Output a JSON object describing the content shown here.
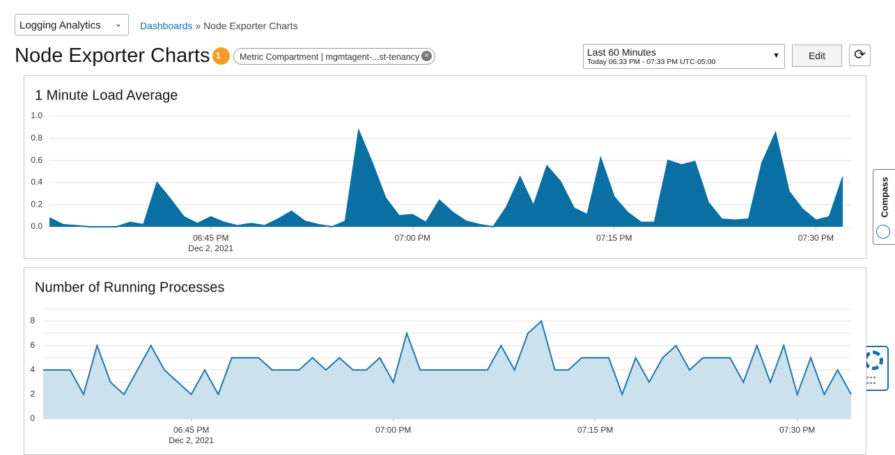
{
  "header": {
    "app_select": "Logging Analytics",
    "breadcrumb_link": "Dashboards",
    "breadcrumb_current": "» Node Exporter Charts",
    "title": "Node Exporter Charts",
    "filter_count": "1",
    "chip": "Metric Compartment | mgmtagent-...st-tenancy",
    "time_range": "Last 60 Minutes",
    "time_detail": "Today 06:33 PM - 07:33 PM UTC-05:00",
    "edit": "Edit",
    "side_tab": "Compass"
  },
  "chart_data": [
    {
      "type": "area",
      "title": "1 Minute Load Average",
      "color": "#0a6fa3",
      "fill": "#0a6fa3",
      "grid": true,
      "x": [
        1113,
        1114,
        1115,
        1116,
        1117,
        1118,
        1119,
        1120,
        1121,
        1122,
        1123,
        1124,
        1125,
        1126,
        1127,
        1128,
        1129,
        1130,
        1131,
        1132,
        1133,
        1134,
        1135,
        1136,
        1137,
        1138,
        1139,
        1140,
        1141,
        1142,
        1143,
        1144,
        1145,
        1146,
        1147,
        1148,
        1149,
        1150,
        1151,
        1152,
        1153,
        1154,
        1155,
        1156,
        1157,
        1158,
        1159,
        1160,
        1161,
        1162,
        1163,
        1164,
        1165,
        1166,
        1167,
        1168,
        1169,
        1170,
        1171,
        1172
      ],
      "values": [
        0.08,
        0.02,
        0.01,
        0,
        0,
        0,
        0.04,
        0.02,
        0.4,
        0.25,
        0.09,
        0.03,
        0.09,
        0.04,
        0.01,
        0.03,
        0.01,
        0.07,
        0.14,
        0.05,
        0.02,
        0,
        0.05,
        0.87,
        0.58,
        0.26,
        0.1,
        0.11,
        0.04,
        0.24,
        0.13,
        0.05,
        0.02,
        0,
        0.18,
        0.45,
        0.19,
        0.55,
        0.41,
        0.17,
        0.11,
        0.62,
        0.27,
        0.13,
        0.04,
        0.04,
        0.6,
        0.56,
        0.59,
        0.22,
        0.07,
        0.06,
        0.07,
        0.58,
        0.85,
        0.32,
        0.16,
        0.06,
        0.09,
        0.45
      ],
      "xlim": [
        1113,
        1172
      ],
      "xticks": [
        {
          "value": 1125,
          "label": "06:45 PM"
        },
        {
          "value": 1140,
          "label": "07:00 PM"
        },
        {
          "value": 1155,
          "label": "07:15 PM"
        },
        {
          "value": 1170,
          "label": "07:30 PM"
        }
      ],
      "date_label": "Dec 2, 2021",
      "ylim": [
        0,
        1
      ],
      "yticks": [
        {
          "value": 0,
          "label": "0.0"
        },
        0.2,
        0.4,
        0.6,
        0.8,
        {
          "value": 1,
          "label": "1.0"
        }
      ]
    },
    {
      "type": "area",
      "title": "Number of Running Processes",
      "color": "#1f77aa",
      "fill": "#cbe1ed",
      "grid": true,
      "x": [
        1114,
        1115,
        1116,
        1117,
        1118,
        1119,
        1120,
        1121,
        1122,
        1123,
        1124,
        1125,
        1126,
        1127,
        1128,
        1129,
        1130,
        1131,
        1132,
        1133,
        1134,
        1135,
        1136,
        1137,
        1138,
        1139,
        1140,
        1141,
        1142,
        1143,
        1144,
        1145,
        1146,
        1147,
        1148,
        1149,
        1150,
        1151,
        1152,
        1153,
        1154,
        1155,
        1156,
        1157,
        1158,
        1159,
        1160,
        1161,
        1162,
        1163,
        1164,
        1165,
        1166,
        1167,
        1168,
        1169,
        1170,
        1171,
        1172,
        1173,
        1174
      ],
      "values": [
        4,
        4,
        4,
        2,
        6,
        3,
        2,
        4,
        6,
        4,
        3,
        2,
        4,
        2,
        5,
        5,
        5,
        4,
        4,
        4,
        5,
        4,
        5,
        4,
        4,
        5,
        3,
        7,
        4,
        4,
        4,
        4,
        4,
        4,
        6,
        4,
        7,
        8,
        4,
        4,
        5,
        5,
        5,
        2,
        5,
        3,
        5,
        6,
        4,
        5,
        5,
        5,
        3,
        6,
        3,
        6,
        2,
        5,
        2,
        4,
        2
      ],
      "xlim": [
        1114,
        1174
      ],
      "xticks": [
        {
          "value": 1125,
          "label": "06:45 PM"
        },
        {
          "value": 1140,
          "label": "07:00 PM"
        },
        {
          "value": 1155,
          "label": "07:15 PM"
        },
        {
          "value": 1170,
          "label": "07:30 PM"
        }
      ],
      "date_label": "Dec 2, 2021",
      "ylim": [
        0,
        9
      ],
      "yticks": [
        0,
        2,
        4,
        6,
        8
      ],
      "minor_yticks": [
        1,
        3,
        5,
        7,
        9
      ]
    }
  ]
}
